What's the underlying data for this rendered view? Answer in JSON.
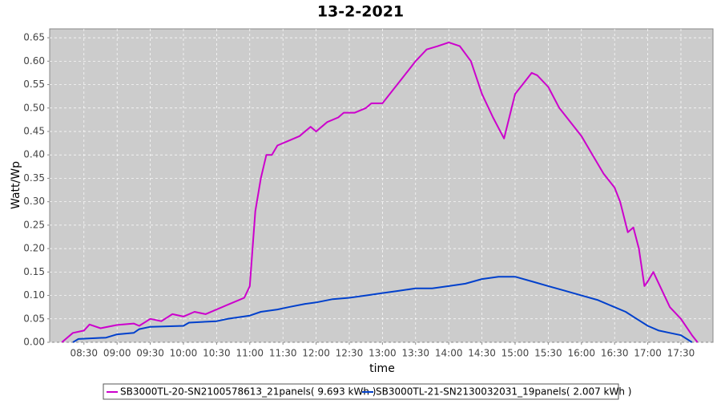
{
  "chart_data": {
    "type": "line",
    "title": "13-2-2021",
    "x_label": "time",
    "y_label": "Watt/Wp",
    "xlim": [
      "07:59",
      "17:59"
    ],
    "xticks": [
      "08:30",
      "09:00",
      "09:30",
      "10:00",
      "10:30",
      "11:00",
      "11:30",
      "12:00",
      "12:30",
      "13:00",
      "13:30",
      "14:00",
      "14:30",
      "15:00",
      "15:30",
      "16:00",
      "16:30",
      "17:00",
      "17:30"
    ],
    "ylim": [
      0,
      0.669
    ],
    "yticks": [
      {
        "value": 0,
        "label": "0.00"
      },
      {
        "value": 0.05,
        "label": "0.05"
      },
      {
        "value": 0.1,
        "label": "0.10"
      },
      {
        "value": 0.15,
        "label": "0.15"
      },
      {
        "value": 0.2,
        "label": "0.20"
      },
      {
        "value": 0.25,
        "label": "0.25"
      },
      {
        "value": 0.3,
        "label": "0.30"
      },
      {
        "value": 0.35,
        "label": "0.35"
      },
      {
        "value": 0.4,
        "label": "0.40"
      },
      {
        "value": 0.45,
        "label": "0.45"
      },
      {
        "value": 0.5,
        "label": "0.50"
      },
      {
        "value": 0.55,
        "label": "0.55"
      },
      {
        "value": 0.6,
        "label": "0.60"
      },
      {
        "value": 0.65,
        "label": "0.65"
      }
    ],
    "grid": true,
    "series": [
      {
        "name": "SB3000TL-20-SN2100578613_21panels( 9.693 kWh )",
        "color": "#cc00cc",
        "x": [
          "08:10",
          "08:20",
          "08:30",
          "08:35",
          "08:45",
          "09:00",
          "09:15",
          "09:20",
          "09:30",
          "09:40",
          "09:50",
          "10:00",
          "10:10",
          "10:20",
          "10:30",
          "10:40",
          "10:50",
          "10:55",
          "11:00",
          "11:05",
          "11:10",
          "11:15",
          "11:20",
          "11:25",
          "11:35",
          "11:45",
          "11:55",
          "12:00",
          "12:10",
          "12:20",
          "12:25",
          "12:35",
          "12:45",
          "12:50",
          "13:00",
          "13:10",
          "13:20",
          "13:30",
          "13:40",
          "13:50",
          "14:00",
          "14:10",
          "14:20",
          "14:30",
          "14:40",
          "14:50",
          "15:00",
          "15:10",
          "15:15",
          "15:20",
          "15:30",
          "15:40",
          "15:50",
          "16:00",
          "16:10",
          "16:20",
          "16:30",
          "16:35",
          "16:42",
          "16:47",
          "16:52",
          "16:57",
          "17:00",
          "17:05",
          "17:10",
          "17:15",
          "17:20",
          "17:30",
          "17:40",
          "17:45"
        ],
        "values": [
          0,
          0.02,
          0.025,
          0.038,
          0.03,
          0.037,
          0.04,
          0.035,
          0.05,
          0.045,
          0.06,
          0.055,
          0.065,
          0.06,
          0.07,
          0.08,
          0.09,
          0.095,
          0.12,
          0.28,
          0.35,
          0.4,
          0.4,
          0.42,
          0.43,
          0.44,
          0.46,
          0.45,
          0.47,
          0.48,
          0.49,
          0.49,
          0.5,
          0.51,
          0.51,
          0.54,
          0.57,
          0.6,
          0.625,
          0.632,
          0.64,
          0.632,
          0.6,
          0.53,
          0.48,
          0.435,
          0.53,
          0.56,
          0.575,
          0.57,
          0.545,
          0.5,
          0.47,
          0.44,
          0.4,
          0.36,
          0.33,
          0.3,
          0.235,
          0.245,
          0.2,
          0.12,
          0.13,
          0.15,
          0.125,
          0.1,
          0.075,
          0.05,
          0.015,
          0
        ]
      },
      {
        "name": "SB3000TL-21-SN2130032031_19panels( 2.007 kWh )",
        "color": "#0040cc",
        "x": [
          "08:20",
          "08:25",
          "08:50",
          "09:00",
          "09:15",
          "09:20",
          "09:30",
          "10:00",
          "10:05",
          "10:30",
          "10:40",
          "11:00",
          "11:10",
          "11:25",
          "11:35",
          "11:50",
          "12:00",
          "12:15",
          "12:30",
          "12:45",
          "13:00",
          "13:15",
          "13:30",
          "13:45",
          "14:00",
          "14:15",
          "14:30",
          "14:45",
          "15:00",
          "15:15",
          "15:30",
          "15:45",
          "16:00",
          "16:15",
          "16:30",
          "16:40",
          "16:50",
          "17:00",
          "17:10",
          "17:20",
          "17:30",
          "17:40"
        ],
        "values": [
          0,
          0.007,
          0.01,
          0.017,
          0.02,
          0.028,
          0.033,
          0.035,
          0.042,
          0.045,
          0.05,
          0.057,
          0.065,
          0.07,
          0.075,
          0.082,
          0.085,
          0.092,
          0.095,
          0.1,
          0.105,
          0.11,
          0.115,
          0.115,
          0.12,
          0.125,
          0.135,
          0.14,
          0.14,
          0.13,
          0.12,
          0.11,
          0.1,
          0.09,
          0.075,
          0.065,
          0.05,
          0.035,
          0.025,
          0.02,
          0.015,
          0
        ]
      }
    ]
  }
}
